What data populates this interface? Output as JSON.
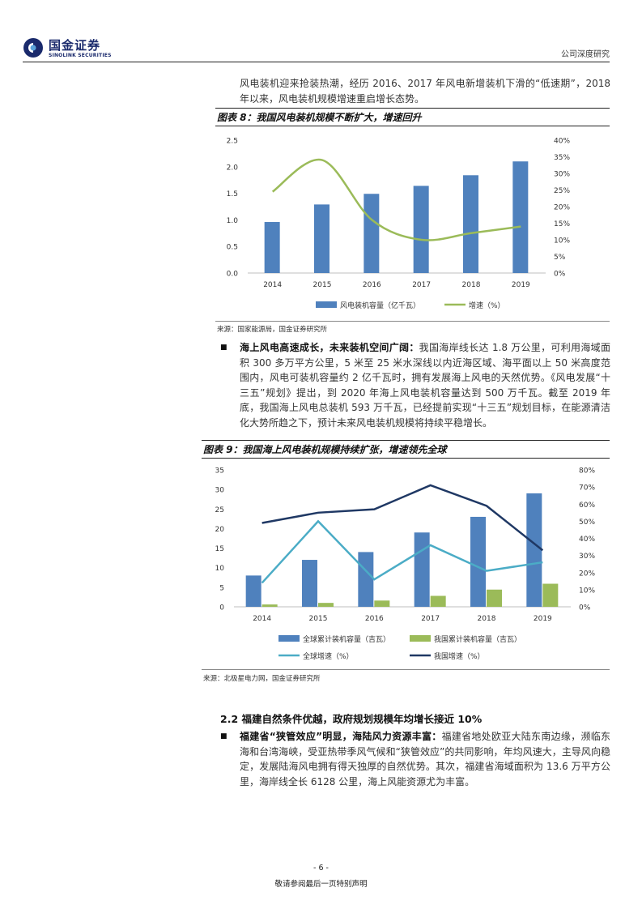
{
  "header": {
    "logo_cn": "国金证券",
    "logo_en": "SINOLINK SECURITIES",
    "right": "公司深度研究",
    "brand_color": "#1a2a6c"
  },
  "intro_text": "风电装机迎来抢装热潮，经历 2016、2017 年风电新增装机下滑的“低速期”，2018 年以来，风电装机规模增速重启增长态势。",
  "figure8": {
    "title": "图表 8：我国风电装机规模不断扩大，增速回升",
    "source": "来源：国家能源局，国金证券研究所"
  },
  "bullet1": {
    "bold": "海上风电高速成长，未来装机空间广阔：",
    "text": "我国海岸线长达 1.8 万公里，可利用海域面积 300 多万平方公里，5 米至 25 米水深线以内近海区域、海平面以上 50 米高度范围内，风电可装机容量约 2 亿千瓦时，拥有发展海上风电的天然优势。《风电发展“十三五”规划》提出，到 2020 年海上风电装机容量达到 500 万千瓦。截至 2019 年底，我国海上风电总装机 593 万千瓦，已经提前实现“十三五”规划目标，在能源清洁化大势所趋之下，预计未来风电装机规模将持续平稳增长。"
  },
  "figure9": {
    "title": "图表 9：我国海上风电装机规模持续扩张，增速领先全球",
    "source": "来源：北极星电力网，国金证券研究所"
  },
  "section": {
    "title": "2.2 福建自然条件优越，政府规划规模年均增长接近 10%"
  },
  "bullet2": {
    "bold": "福建省“狭管效应”明显，海陆风力资源丰富：",
    "text": "福建省地处欧亚大陆东南边缘，濒临东海和台湾海峡，受亚热带季风气候和“狭管效应”的共同影响，年均风速大，主导风向稳定，发展陆海风电拥有得天独厚的自然优势。其次，福建省海域面积为 13.6 万平方公里，海岸线全长 6128 公里，海上风能资源尤为丰富。"
  },
  "footer": {
    "page": "- 6 -",
    "disclaimer": "敬请参阅最后一页特别声明"
  },
  "chart_data": [
    {
      "type": "bar",
      "categories": [
        "2014",
        "2015",
        "2016",
        "2017",
        "2018",
        "2019"
      ],
      "series": [
        {
          "name": "风电装机容量（亿千瓦）",
          "type": "bar",
          "axis": "left",
          "values": [
            0.96,
            1.29,
            1.49,
            1.64,
            1.84,
            2.1
          ],
          "color": "#4f81bd"
        },
        {
          "name": "增速（%）",
          "type": "line",
          "axis": "right",
          "values": [
            24.5,
            34.0,
            16.0,
            10.0,
            12.0,
            14.0
          ],
          "color": "#9bbb59"
        }
      ],
      "ylim_left": [
        0,
        2.5
      ],
      "yticks_left": [
        "0.0",
        "0.5",
        "1.0",
        "1.5",
        "2.0",
        "2.5"
      ],
      "ylim_right": [
        0,
        40
      ],
      "yticks_right": [
        "0%",
        "5%",
        "10%",
        "15%",
        "20%",
        "25%",
        "30%",
        "35%",
        "40%"
      ],
      "legend": "bottom"
    },
    {
      "type": "bar",
      "categories": [
        "2014",
        "2015",
        "2016",
        "2017",
        "2018",
        "2019"
      ],
      "series": [
        {
          "name": "全球累计装机容量（吉瓦）",
          "type": "bar",
          "axis": "left",
          "values": [
            8,
            12,
            14,
            19,
            23,
            29
          ],
          "color": "#4f81bd"
        },
        {
          "name": "我国累计装机容量（吉瓦）",
          "type": "bar",
          "axis": "left",
          "values": [
            0.6,
            1.0,
            1.6,
            2.8,
            4.4,
            5.9
          ],
          "color": "#9bbb59"
        },
        {
          "name": "全球增速（%）",
          "type": "line",
          "axis": "right",
          "values": [
            14,
            50,
            16,
            36,
            21,
            26
          ],
          "color": "#4bacc6"
        },
        {
          "name": "我国增速（%）",
          "type": "line",
          "axis": "right",
          "values": [
            49,
            55,
            57,
            71,
            59,
            33
          ],
          "color": "#1f3864"
        }
      ],
      "ylim_left": [
        0,
        35
      ],
      "yticks_left": [
        "0",
        "5",
        "10",
        "15",
        "20",
        "25",
        "30",
        "35"
      ],
      "ylim_right": [
        0,
        80
      ],
      "yticks_right": [
        "0%",
        "10%",
        "20%",
        "30%",
        "40%",
        "50%",
        "60%",
        "70%",
        "80%"
      ],
      "legend": "bottom"
    }
  ]
}
